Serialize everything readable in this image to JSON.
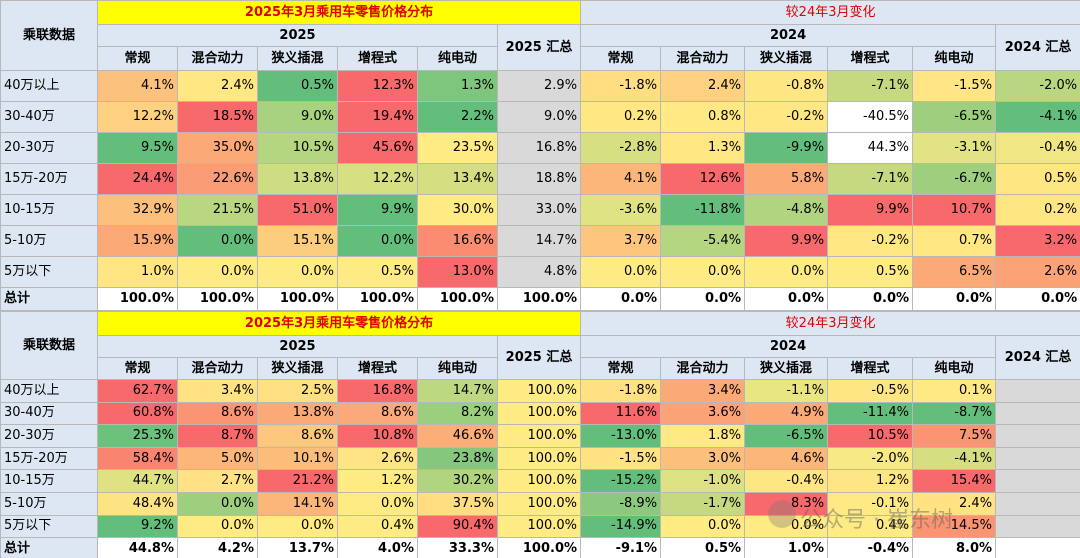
{
  "tables": [
    {
      "row_header": "乘联数据",
      "title_left": "2025年3月乘用车零售价格分布",
      "title_right": "较24年3月变化",
      "year_left": "2025",
      "year_right": "2024",
      "total_left": "2025 汇总",
      "total_right": "2024 汇总",
      "columns": [
        "常规",
        "混合动力",
        "狭义插混",
        "增程式",
        "纯电动"
      ],
      "columns_right": [
        "常规",
        "混合动力",
        "狭义插混",
        "增程式",
        "纯电动"
      ],
      "rows": [
        {
          "label": "40万以上",
          "cells": [
            "4.1%",
            "2.4%",
            "0.5%",
            "12.3%",
            "1.3%",
            "2.9%",
            "-1.8%",
            "2.4%",
            "-0.8%",
            "-7.1%",
            "-1.5%",
            "-2.0%"
          ],
          "colors": [
            "#fcc17c",
            "#ffe884",
            "#63be7b",
            "#f8696b",
            "#7ec57d",
            "#d9d9d9",
            "#fede81",
            "#fdd17f",
            "#fee683",
            "#c5da80",
            "#ffe583",
            "#b9d780"
          ]
        },
        {
          "label": "30-40万",
          "cells": [
            "12.2%",
            "18.5%",
            "9.0%",
            "19.4%",
            "2.2%",
            "9.0%",
            "0.2%",
            "0.8%",
            "-0.2%",
            "-40.5%",
            "-6.5%",
            "-4.1%"
          ],
          "colors": [
            "#fdd17f",
            "#f8696b",
            "#a8d27f",
            "#f8696b",
            "#63be7b",
            "#d9d9d9",
            "#ffe884",
            "#ffe984",
            "#ffe884",
            "#ffffff",
            "#9dcf7e",
            "#63be7b"
          ]
        },
        {
          "label": "20-30万",
          "cells": [
            "9.5%",
            "35.0%",
            "10.5%",
            "45.6%",
            "23.5%",
            "16.8%",
            "-2.8%",
            "1.3%",
            "-9.9%",
            "44.3%",
            "-3.1%",
            "-0.4%"
          ],
          "colors": [
            "#63be7b",
            "#fbaa77",
            "#b5d680",
            "#f8696b",
            "#ffeb84",
            "#d9d9d9",
            "#d6df82",
            "#ffe884",
            "#63be7b",
            "#ffffff",
            "#e2e383",
            "#f0e784"
          ]
        },
        {
          "label": "15万-20万",
          "cells": [
            "24.4%",
            "22.6%",
            "13.8%",
            "12.2%",
            "13.4%",
            "18.8%",
            "4.1%",
            "12.6%",
            "5.8%",
            "-7.1%",
            "-6.7%",
            "0.5%"
          ],
          "colors": [
            "#f8696b",
            "#fa9c75",
            "#cfdd82",
            "#d6df82",
            "#d5df82",
            "#d9d9d9",
            "#fcb67a",
            "#f8696b",
            "#fbaa77",
            "#c5da80",
            "#9dcf7e",
            "#fee783"
          ]
        },
        {
          "label": "10-15万",
          "cells": [
            "32.9%",
            "21.5%",
            "51.0%",
            "9.9%",
            "30.0%",
            "33.0%",
            "-3.6%",
            "-11.8%",
            "-4.8%",
            "9.9%",
            "10.7%",
            "0.2%"
          ],
          "colors": [
            "#fcc07c",
            "#b9d780",
            "#f8696b",
            "#63be7b",
            "#ffeb84",
            "#d9d9d9",
            "#e0e383",
            "#63be7b",
            "#b0d47f",
            "#f8696b",
            "#f8696b",
            "#fee683"
          ]
        },
        {
          "label": "5-10万",
          "cells": [
            "15.9%",
            "0.0%",
            "15.1%",
            "0.0%",
            "16.6%",
            "14.7%",
            "3.7%",
            "-5.4%",
            "9.9%",
            "-0.2%",
            "0.7%",
            "3.2%"
          ],
          "colors": [
            "#fbaa77",
            "#63be7b",
            "#fdcd7e",
            "#63be7b",
            "#fa8c72",
            "#d9d9d9",
            "#fdc57d",
            "#b5d680",
            "#f8696b",
            "#ffe884",
            "#ffe884",
            "#f8696b"
          ]
        },
        {
          "label": "5万以下",
          "cells": [
            "1.0%",
            "0.0%",
            "0.0%",
            "0.5%",
            "13.0%",
            "4.8%",
            "0.0%",
            "0.0%",
            "0.0%",
            "0.5%",
            "6.5%",
            "2.6%"
          ],
          "colors": [
            "#ffe683",
            "#ffeb84",
            "#ffeb84",
            "#ffeb84",
            "#f8696b",
            "#d9d9d9",
            "#ffeb84",
            "#ffeb84",
            "#ffeb84",
            "#ffeb84",
            "#fbaa77",
            "#fba276"
          ]
        }
      ],
      "total": {
        "label": "总计",
        "cells": [
          "100.0%",
          "100.0%",
          "100.0%",
          "100.0%",
          "100.0%",
          "100.0%",
          "0.0%",
          "0.0%",
          "0.0%",
          "0.0%",
          "0.0%",
          "0.0%"
        ]
      }
    },
    {
      "row_header": "乘联数据",
      "title_left": "2025年3月乘用车零售价格分布",
      "title_right": "较24年3月变化",
      "year_left": "2025",
      "year_right": "2024",
      "total_left": "2025 汇总",
      "total_right": "2024 汇总",
      "columns": [
        "常规",
        "混合动力",
        "狭义插混",
        "增程式",
        "纯电动"
      ],
      "columns_right": [
        "常规",
        "混合动力",
        "狭义插混",
        "增程式",
        "纯电动"
      ],
      "rows": [
        {
          "label": "40万以上",
          "cells": [
            "62.7%",
            "3.4%",
            "2.5%",
            "16.8%",
            "14.7%",
            "100.0%",
            "-1.8%",
            "3.4%",
            "-1.1%",
            "-0.5%",
            "0.1%"
          ],
          "colors": [
            "#f8696b",
            "#fee283",
            "#fedf81",
            "#f8696b",
            "#bcd880",
            "#ffeb84",
            "#ffe183",
            "#fbaa77",
            "#e8e583",
            "#fee683",
            "#ffe984"
          ]
        },
        {
          "label": "30-40万",
          "cells": [
            "60.8%",
            "8.6%",
            "13.8%",
            "8.6%",
            "8.2%",
            "100.0%",
            "11.6%",
            "3.6%",
            "4.9%",
            "-11.4%",
            "-8.7%"
          ],
          "colors": [
            "#f8696b",
            "#fa9473",
            "#fbaa77",
            "#fba97a",
            "#9bcf7e",
            "#ffeb84",
            "#f8696b",
            "#fba276",
            "#fbaa77",
            "#63be7b",
            "#63be7b"
          ]
        },
        {
          "label": "20-30万",
          "cells": [
            "25.3%",
            "8.7%",
            "8.6%",
            "10.8%",
            "46.6%",
            "100.0%",
            "-13.0%",
            "1.8%",
            "-6.5%",
            "10.5%",
            "7.5%"
          ],
          "colors": [
            "#6cc17c",
            "#f8696b",
            "#fdc77d",
            "#f8696b",
            "#fbae78",
            "#ffeb84",
            "#63be7b",
            "#ffe984",
            "#63be7b",
            "#f8696b",
            "#fa9473"
          ]
        },
        {
          "label": "15万-20万",
          "cells": [
            "58.4%",
            "5.0%",
            "10.1%",
            "2.6%",
            "23.8%",
            "100.0%",
            "-1.5%",
            "3.0%",
            "4.6%",
            "-2.0%",
            "-4.1%"
          ],
          "colors": [
            "#f98570",
            "#fcb67a",
            "#fcbd7b",
            "#ffe483",
            "#84c77d",
            "#ffeb84",
            "#ffe383",
            "#fdc07c",
            "#fcb67a",
            "#f7e984",
            "#d5df82"
          ]
        },
        {
          "label": "10-15万",
          "cells": [
            "44.7%",
            "2.7%",
            "21.2%",
            "1.2%",
            "30.2%",
            "100.0%",
            "-15.2%",
            "-1.0%",
            "-0.4%",
            "1.2%",
            "15.4%"
          ],
          "colors": [
            "#dfe283",
            "#fee283",
            "#f8696b",
            "#ffeb84",
            "#b0d47f",
            "#ffeb84",
            "#63be7b",
            "#dce182",
            "#fee683",
            "#ffe684",
            "#f8696b"
          ]
        },
        {
          "label": "5-10万",
          "cells": [
            "48.4%",
            "0.0%",
            "14.1%",
            "0.0%",
            "37.5%",
            "100.0%",
            "-8.9%",
            "-1.7%",
            "8.3%",
            "-0.1%",
            "2.4%"
          ],
          "colors": [
            "#fee383",
            "#9dcf7e",
            "#fcb67a",
            "#ffeb84",
            "#fede81",
            "#ffeb84",
            "#8cc97e",
            "#c5da80",
            "#f8696b",
            "#ffe984",
            "#ffe383"
          ]
        },
        {
          "label": "5万以下",
          "cells": [
            "9.2%",
            "0.0%",
            "0.0%",
            "0.4%",
            "90.4%",
            "100.0%",
            "-14.9%",
            "0.0%",
            "0.0%",
            "0.4%",
            "14.5%"
          ],
          "colors": [
            "#63be7b",
            "#ffeb84",
            "#ffeb84",
            "#ffeb84",
            "#f8696b",
            "#ffeb84",
            "#63be7b",
            "#ffeb84",
            "#ffeb84",
            "#ffeb84",
            "#fa9473"
          ]
        }
      ],
      "total": {
        "label": "总计",
        "cells": [
          "44.8%",
          "4.2%",
          "13.7%",
          "4.0%",
          "33.3%",
          "100.0%",
          "-9.1%",
          "0.5%",
          "1.0%",
          "-0.4%",
          "8.0%"
        ]
      }
    }
  ],
  "watermark": "公众号 · 崔东树"
}
